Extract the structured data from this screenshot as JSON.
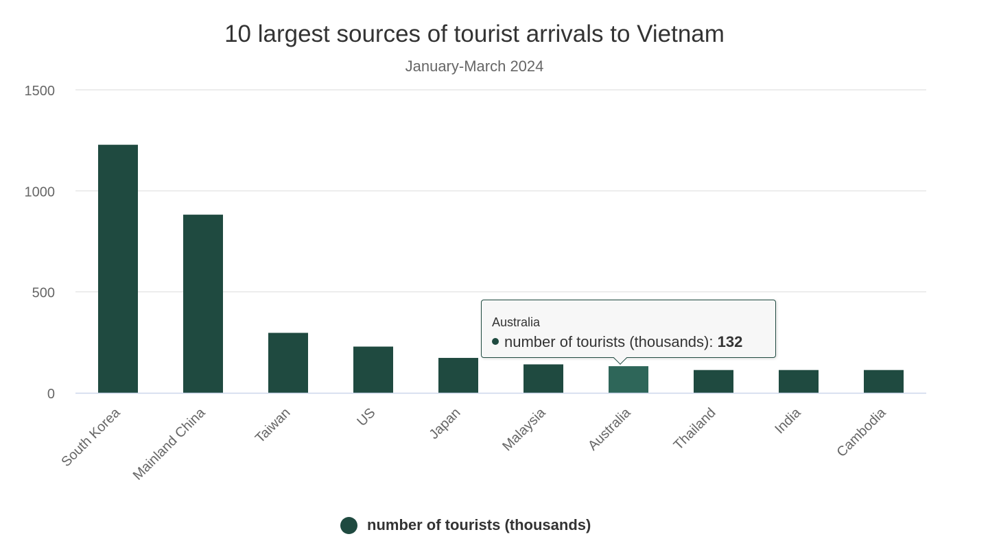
{
  "chart_data": {
    "type": "bar",
    "title": "10 largest sources of tourist arrivals to Vietnam",
    "subtitle": "January-March 2024",
    "xlabel": "",
    "ylabel": "",
    "categories": [
      "South Korea",
      "Mainland China",
      "Taiwan",
      "US",
      "Japan",
      "Malaysia",
      "Australia",
      "Thailand",
      "India",
      "Cambodia"
    ],
    "series": [
      {
        "name": "number of tourists (thousands)",
        "values": [
          1228,
          882,
          297,
          229,
          173,
          141,
          132,
          113,
          113,
          113
        ]
      }
    ],
    "ylim": [
      0,
      1500
    ],
    "yticks": [
      "0",
      "500",
      "1000",
      "1500"
    ],
    "grid": true,
    "legend": "bottom-center",
    "highlighted_category": "Australia"
  },
  "tooltip": {
    "header": "Australia",
    "series_label": "number of tourists (thousands): ",
    "value": "132"
  },
  "colors": {
    "bar": "#1f4a40",
    "bar_highlight": "#2e6659",
    "grid": "#e6e6e6",
    "axis": "#ccd6eb",
    "text": "#333333",
    "tick_text": "#666666"
  }
}
